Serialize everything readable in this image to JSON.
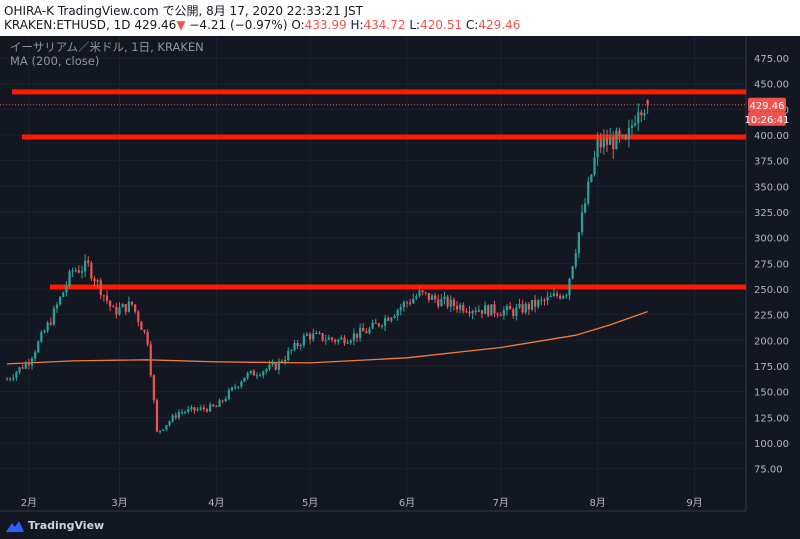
{
  "header": {
    "line1": "OHIRA-K TradingView.com で公開, 8月 17, 2020 22:33:21 JST",
    "symbol": "KRAKEN:ETHUSD, 1D",
    "last": "429.46",
    "change": "−4.21 (−0.97%)",
    "o_label": "O:",
    "o": "433.99",
    "h_label": "H:",
    "h": "434.72",
    "l_label": "L:",
    "l": "420.51",
    "c_label": "C:",
    "c": "429.46"
  },
  "overlay": {
    "title": "イーサリアム／米ドル, 1日, KRAKEN",
    "indicator": "MA (200, close)"
  },
  "price_tag": {
    "price": "429.46",
    "time": "10:26:41"
  },
  "brand": {
    "name": "TradingView",
    "icon": "tradingview-logo-icon"
  },
  "colors": {
    "background": "#131722",
    "up": "#26a69a",
    "down": "#ef5350",
    "ma": "#f57c36",
    "hline": "#ff1a00",
    "axis_text": "#b2b5be",
    "tag": "#ef5350"
  },
  "chart_data": {
    "type": "candlestick",
    "symbol": "KRAKEN:ETHUSD",
    "timeframe": "1D",
    "x_axis_labels": [
      "2月",
      "3月",
      "4月",
      "5月",
      "6月",
      "7月",
      "8月",
      "9月"
    ],
    "y_ticks": [
      75,
      100,
      125,
      150,
      175,
      200,
      225,
      250,
      275,
      300,
      325,
      350,
      375,
      400,
      425,
      450,
      475
    ],
    "y_range": [
      52,
      493
    ],
    "horizontal_lines": [
      {
        "price": 442,
        "from_month": "1月下旬",
        "to": "right edge"
      },
      {
        "price": 398,
        "from_month": "1月下旬",
        "to": "right edge"
      },
      {
        "price": 252,
        "from_month": "2月中旬",
        "to": "right edge"
      }
    ],
    "ma200_points": [
      [
        "2020-01-25",
        177
      ],
      [
        "2020-02-15",
        180
      ],
      [
        "2020-03-10",
        181
      ],
      [
        "2020-04-01",
        179
      ],
      [
        "2020-05-01",
        178
      ],
      [
        "2020-06-01",
        183
      ],
      [
        "2020-07-01",
        193
      ],
      [
        "2020-07-25",
        205
      ],
      [
        "2020-08-05",
        215
      ],
      [
        "2020-08-17",
        228
      ]
    ],
    "price_path_anchors": [
      [
        "2020-01-25",
        162
      ],
      [
        "2020-02-01",
        180
      ],
      [
        "2020-02-08",
        220
      ],
      [
        "2020-02-15",
        268
      ],
      [
        "2020-02-20",
        272
      ],
      [
        "2020-02-28",
        228
      ],
      [
        "2020-03-05",
        235
      ],
      [
        "2020-03-10",
        200
      ],
      [
        "2020-03-13",
        110
      ],
      [
        "2020-03-20",
        130
      ],
      [
        "2020-04-01",
        135
      ],
      [
        "2020-04-10",
        165
      ],
      [
        "2020-04-20",
        175
      ],
      [
        "2020-04-30",
        205
      ],
      [
        "2020-05-10",
        200
      ],
      [
        "2020-05-20",
        210
      ],
      [
        "2020-05-31",
        235
      ],
      [
        "2020-06-05",
        245
      ],
      [
        "2020-06-15",
        235
      ],
      [
        "2020-06-25",
        230
      ],
      [
        "2020-07-05",
        228
      ],
      [
        "2020-07-15",
        238
      ],
      [
        "2020-07-22",
        248
      ],
      [
        "2020-07-26",
        305
      ],
      [
        "2020-08-01",
        390
      ],
      [
        "2020-08-07",
        395
      ],
      [
        "2020-08-10",
        390
      ],
      [
        "2020-08-14",
        430
      ],
      [
        "2020-08-17",
        429.46
      ]
    ],
    "last": {
      "open": 433.99,
      "high": 434.72,
      "low": 420.51,
      "close": 429.46
    }
  }
}
